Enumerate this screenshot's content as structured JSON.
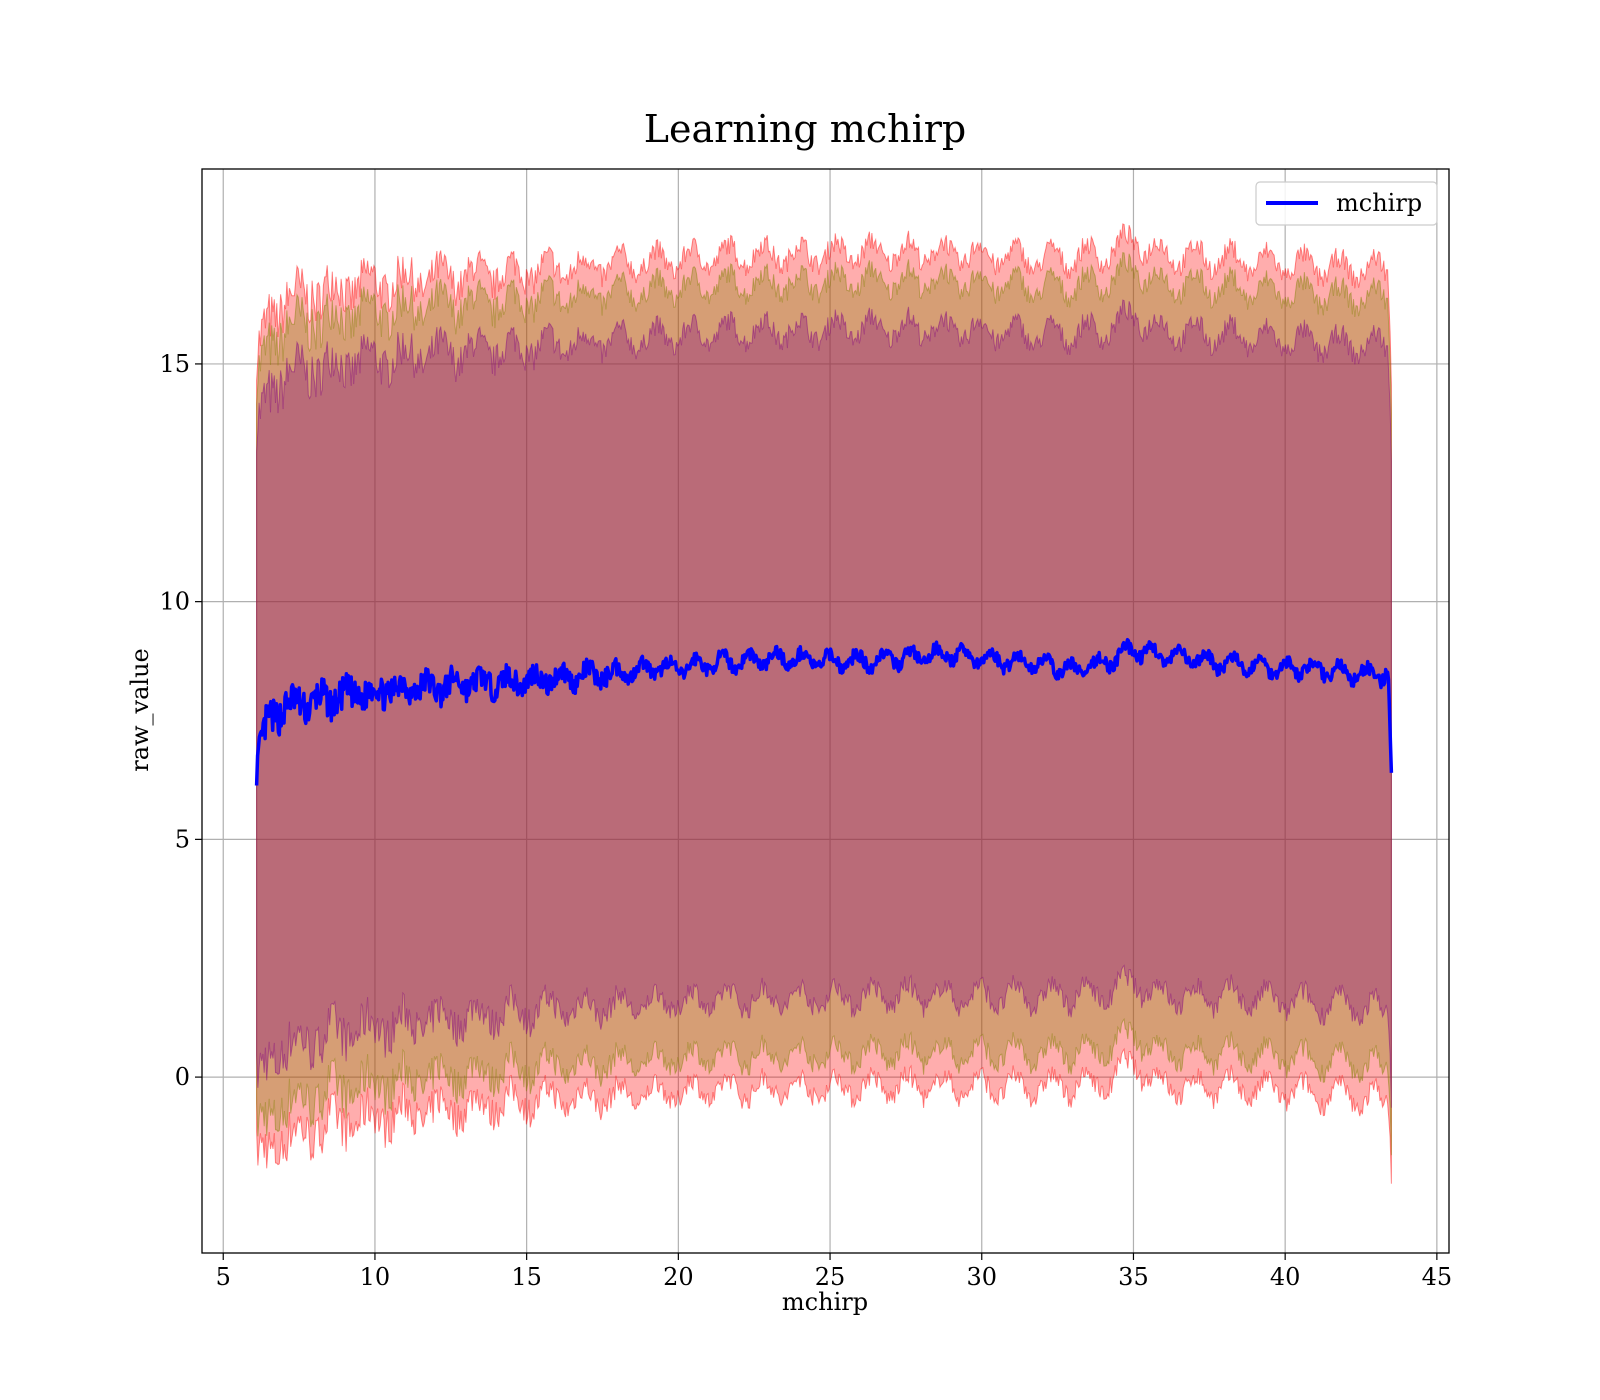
{
  "chart_data": {
    "type": "line",
    "title": "Learning mchirp",
    "xlabel": "mchirp",
    "ylabel": "raw_value",
    "xlim": [
      4.3,
      45.4
    ],
    "ylim": [
      -3.7,
      19.1
    ],
    "xticks": [
      5,
      10,
      15,
      20,
      25,
      30,
      35,
      40,
      45
    ],
    "yticks": [
      0,
      5,
      10,
      15
    ],
    "grid": true,
    "legend": {
      "placement": "top-right",
      "entries": [
        "mchirp"
      ]
    },
    "colors": {
      "line": "#0000ff",
      "band_outer": "#ff0000",
      "band_middle": "#808000",
      "band_inner": "#800080"
    },
    "series": [
      {
        "name": "mchirp",
        "x": [
          6.1,
          6.5,
          7,
          8,
          9,
          10,
          11,
          12,
          13,
          14,
          15,
          16,
          17,
          18,
          19,
          20,
          21,
          22,
          23,
          24,
          25,
          26,
          27,
          28,
          29,
          30,
          31,
          32,
          33,
          34,
          35,
          36,
          37,
          38,
          39,
          40,
          41,
          42,
          43,
          43.4,
          43.5
        ],
        "y": [
          6.6,
          7.5,
          7.8,
          7.9,
          8.0,
          8.1,
          8.2,
          8.2,
          8.3,
          8.3,
          8.35,
          8.4,
          8.45,
          8.5,
          8.6,
          8.6,
          8.7,
          8.75,
          8.8,
          8.8,
          8.75,
          8.75,
          8.8,
          8.85,
          8.9,
          8.8,
          8.75,
          8.7,
          8.55,
          8.7,
          9.0,
          8.85,
          8.8,
          8.7,
          8.65,
          8.6,
          8.6,
          8.5,
          8.45,
          8.5,
          6.4
        ]
      }
    ],
    "bands": [
      {
        "x": [
          6.1,
          6.5,
          7,
          8,
          9,
          10,
          12,
          14,
          16,
          18,
          20,
          22,
          24,
          26,
          28,
          30,
          32,
          34,
          35,
          36,
          38,
          40,
          42,
          43.4,
          43.5
        ],
        "upper": [
          15.0,
          16.0,
          16.3,
          16.5,
          16.6,
          16.7,
          16.8,
          16.9,
          17.0,
          17.1,
          17.2,
          17.3,
          17.3,
          17.35,
          17.35,
          17.3,
          17.2,
          17.3,
          17.6,
          17.3,
          17.2,
          17.1,
          17.0,
          17.0,
          14.8
        ],
        "lower": [
          -1.8,
          -1.5,
          -1.3,
          -1.1,
          -0.95,
          -0.85,
          -0.7,
          -0.55,
          -0.45,
          -0.4,
          -0.3,
          -0.25,
          -0.25,
          -0.2,
          -0.2,
          -0.2,
          -0.2,
          -0.15,
          0.3,
          -0.2,
          -0.2,
          -0.3,
          -0.4,
          -0.5,
          -1.8
        ]
      },
      {
        "x": [
          6.1,
          6.5,
          7,
          8,
          9,
          10,
          12,
          14,
          16,
          18,
          20,
          22,
          24,
          26,
          28,
          30,
          32,
          34,
          35,
          36,
          38,
          40,
          42,
          43.4,
          43.5
        ],
        "upper": [
          14.5,
          15.4,
          15.7,
          15.9,
          16.0,
          16.1,
          16.2,
          16.3,
          16.4,
          16.5,
          16.6,
          16.7,
          16.7,
          16.75,
          16.75,
          16.7,
          16.6,
          16.7,
          17.0,
          16.7,
          16.6,
          16.5,
          16.4,
          16.4,
          14.2
        ],
        "lower": [
          -1.2,
          -0.8,
          -0.6,
          -0.4,
          -0.25,
          -0.15,
          0.0,
          0.15,
          0.25,
          0.3,
          0.4,
          0.45,
          0.45,
          0.5,
          0.5,
          0.5,
          0.5,
          0.55,
          0.9,
          0.5,
          0.5,
          0.4,
          0.3,
          0.2,
          -1.2
        ]
      },
      {
        "x": [
          6.1,
          6.5,
          7,
          8,
          9,
          10,
          12,
          14,
          16,
          18,
          20,
          22,
          24,
          26,
          28,
          30,
          32,
          34,
          35,
          36,
          38,
          40,
          42,
          43.4,
          43.5
        ],
        "upper": [
          13.5,
          14.4,
          14.7,
          14.9,
          15.0,
          15.1,
          15.2,
          15.3,
          15.4,
          15.5,
          15.6,
          15.7,
          15.7,
          15.75,
          15.75,
          15.7,
          15.6,
          15.7,
          16.0,
          15.7,
          15.6,
          15.5,
          15.4,
          15.4,
          13.2
        ],
        "lower": [
          -0.2,
          0.4,
          0.6,
          0.8,
          0.95,
          1.05,
          1.2,
          1.35,
          1.45,
          1.5,
          1.6,
          1.65,
          1.65,
          1.7,
          1.7,
          1.7,
          1.7,
          1.75,
          2.0,
          1.7,
          1.7,
          1.6,
          1.5,
          1.4,
          -0.2
        ]
      }
    ]
  }
}
